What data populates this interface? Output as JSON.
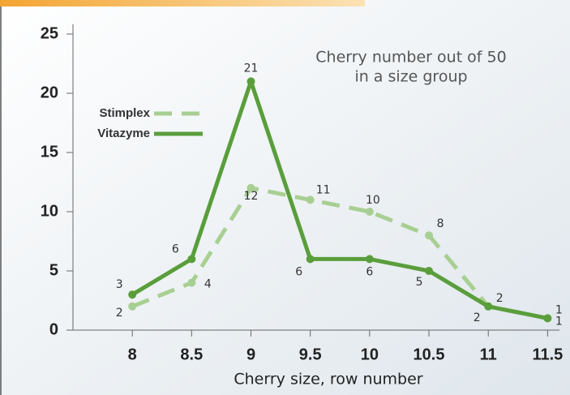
{
  "chart_data": {
    "type": "line",
    "annotation": [
      "Cherry number out of 50",
      "in a size group"
    ],
    "x_label": "Cherry size, row number",
    "x": [
      8,
      8.5,
      9,
      9.5,
      10,
      10.5,
      11,
      11.5
    ],
    "series": [
      {
        "name": "Stimplex",
        "color": "#a8cf92",
        "dash": true,
        "values": [
          2,
          4,
          12,
          11,
          10,
          8,
          2,
          1
        ]
      },
      {
        "name": "Vitazyme",
        "color": "#5a9e3c",
        "dash": false,
        "values": [
          3,
          6,
          21,
          6,
          6,
          5,
          2,
          1
        ]
      }
    ],
    "xlim": [
      7.5,
      11.6
    ],
    "xticks": [
      8,
      8.5,
      9,
      9.5,
      10,
      10.5,
      11,
      11.5
    ],
    "ylim": [
      0,
      25
    ],
    "yticks": [
      0,
      5,
      10,
      15,
      20,
      25
    ],
    "legend": "top-left"
  }
}
